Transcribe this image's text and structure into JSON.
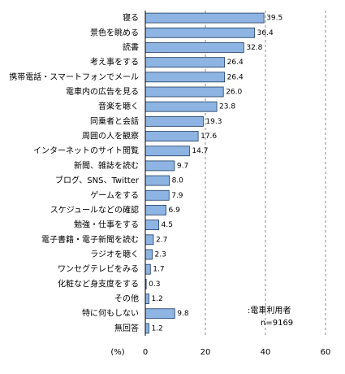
{
  "chart_data": {
    "type": "bar",
    "orientation": "horizontal",
    "categories": [
      "寝る",
      "景色を眺める",
      "読書",
      "考え事をする",
      "携帯電話・スマートフォンでメール",
      "電車内の広告を見る",
      "音楽を聴く",
      "同乗者と会話",
      "周囲の人を観察",
      "インターネットのサイト閲覧",
      "新聞、雑誌を読む",
      "ブログ、SNS、Twitter",
      "ゲームをする",
      "スケジュールなどの確認",
      "勉強・仕事をする",
      "電子書籍・電子新聞を読む",
      "ラジオを聴く",
      "ワンセグテレビをみる",
      "化粧など身支度をする",
      "その他",
      "特に何もしない",
      "無回答"
    ],
    "values": [
      39.5,
      36.4,
      32.8,
      26.4,
      26.4,
      26.0,
      23.8,
      19.3,
      17.6,
      14.7,
      9.7,
      8.0,
      7.9,
      6.9,
      4.5,
      2.7,
      2.3,
      1.7,
      0.3,
      1.2,
      9.8,
      1.2
    ],
    "value_labels": [
      "39.5",
      "36.4",
      "32.8",
      "26.4",
      "26.4",
      "26.0",
      "23.8",
      "19.3",
      "17.6",
      "14.7",
      "9.7",
      "8.0",
      "7.9",
      "6.9",
      "4.5",
      "2.7",
      "2.3",
      "1.7",
      "0.3",
      "1.2",
      "9.8",
      "1.2"
    ],
    "color": "#8db4e2",
    "xlim": [
      0,
      60
    ],
    "xticks": [
      0,
      20,
      40,
      60
    ],
    "x_label": "(%)",
    "grid": true,
    "annotations": [
      ":電車利用者",
      "n=9169"
    ]
  }
}
